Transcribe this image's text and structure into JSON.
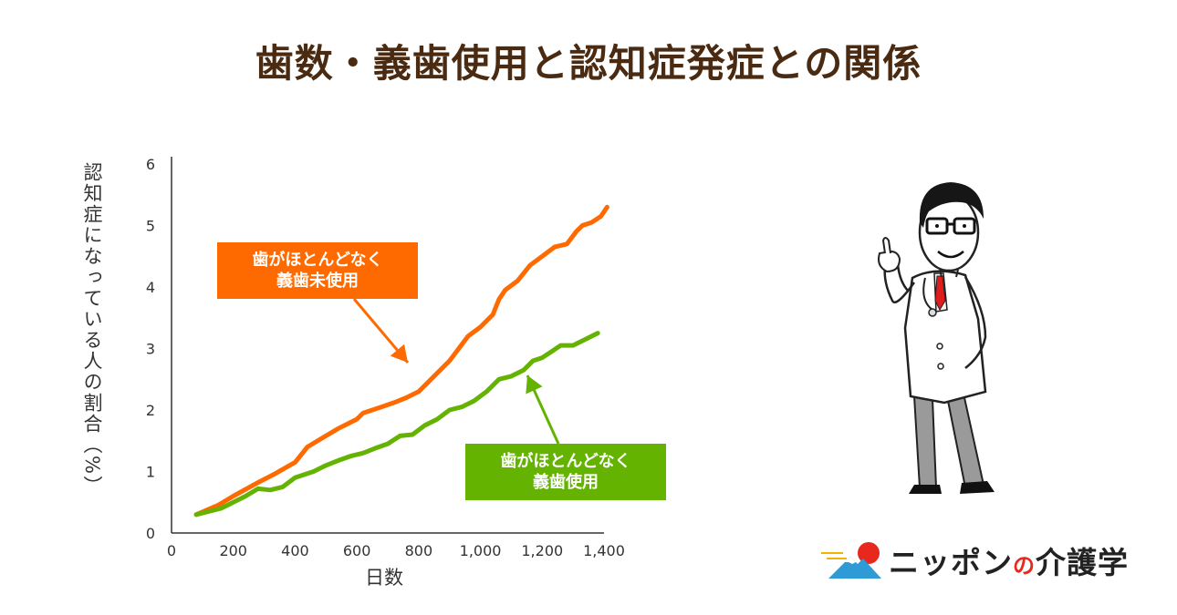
{
  "title": "歯数・義歯使用と認知症発症との関係",
  "chart_data": {
    "type": "line",
    "ylabel": "認知症になっている人の割合（%）",
    "xlabel": "日数",
    "xlim": [
      0,
      1400
    ],
    "ylim": [
      0,
      6
    ],
    "x_ticks": [
      "0",
      "200",
      "400",
      "600",
      "800",
      "1,000",
      "1,200",
      "1,400"
    ],
    "y_ticks": [
      "0",
      "1",
      "2",
      "3",
      "4",
      "5",
      "6"
    ],
    "grid": false,
    "series": [
      {
        "name": "歯がほとんどなく義歯未使用",
        "color": "#ff6a00",
        "points": [
          [
            80,
            0.3
          ],
          [
            150,
            0.45
          ],
          [
            200,
            0.6
          ],
          [
            280,
            0.82
          ],
          [
            330,
            0.95
          ],
          [
            400,
            1.15
          ],
          [
            440,
            1.4
          ],
          [
            480,
            1.52
          ],
          [
            540,
            1.7
          ],
          [
            600,
            1.85
          ],
          [
            620,
            1.95
          ],
          [
            680,
            2.05
          ],
          [
            720,
            2.12
          ],
          [
            760,
            2.2
          ],
          [
            800,
            2.3
          ],
          [
            860,
            2.6
          ],
          [
            900,
            2.8
          ],
          [
            960,
            3.2
          ],
          [
            1000,
            3.35
          ],
          [
            1040,
            3.55
          ],
          [
            1060,
            3.8
          ],
          [
            1080,
            3.95
          ],
          [
            1120,
            4.1
          ],
          [
            1160,
            4.35
          ],
          [
            1200,
            4.5
          ],
          [
            1240,
            4.65
          ],
          [
            1280,
            4.7
          ],
          [
            1310,
            4.9
          ],
          [
            1330,
            5.0
          ],
          [
            1360,
            5.05
          ],
          [
            1390,
            5.15
          ],
          [
            1410,
            5.3
          ]
        ]
      },
      {
        "name": "歯がほとんどなく義歯使用",
        "color": "#63b300",
        "points": [
          [
            80,
            0.3
          ],
          [
            160,
            0.4
          ],
          [
            200,
            0.5
          ],
          [
            240,
            0.6
          ],
          [
            280,
            0.72
          ],
          [
            320,
            0.7
          ],
          [
            360,
            0.75
          ],
          [
            400,
            0.9
          ],
          [
            460,
            1.0
          ],
          [
            500,
            1.1
          ],
          [
            540,
            1.18
          ],
          [
            580,
            1.25
          ],
          [
            620,
            1.3
          ],
          [
            660,
            1.38
          ],
          [
            700,
            1.45
          ],
          [
            740,
            1.58
          ],
          [
            780,
            1.6
          ],
          [
            820,
            1.75
          ],
          [
            860,
            1.85
          ],
          [
            900,
            2.0
          ],
          [
            940,
            2.05
          ],
          [
            980,
            2.15
          ],
          [
            1020,
            2.3
          ],
          [
            1060,
            2.5
          ],
          [
            1100,
            2.55
          ],
          [
            1140,
            2.65
          ],
          [
            1170,
            2.8
          ],
          [
            1200,
            2.85
          ],
          [
            1230,
            2.95
          ],
          [
            1260,
            3.05
          ],
          [
            1300,
            3.05
          ],
          [
            1340,
            3.15
          ],
          [
            1380,
            3.25
          ]
        ]
      }
    ],
    "annotations": [
      {
        "series": 0,
        "line1": "歯がほとんどなく",
        "line2": "義歯未使用"
      },
      {
        "series": 1,
        "line1": "歯がほとんどなく",
        "line2": "義歯使用"
      }
    ]
  },
  "logo": {
    "text_a": "ニッポン",
    "text_no": "の",
    "text_b": "介護学"
  }
}
